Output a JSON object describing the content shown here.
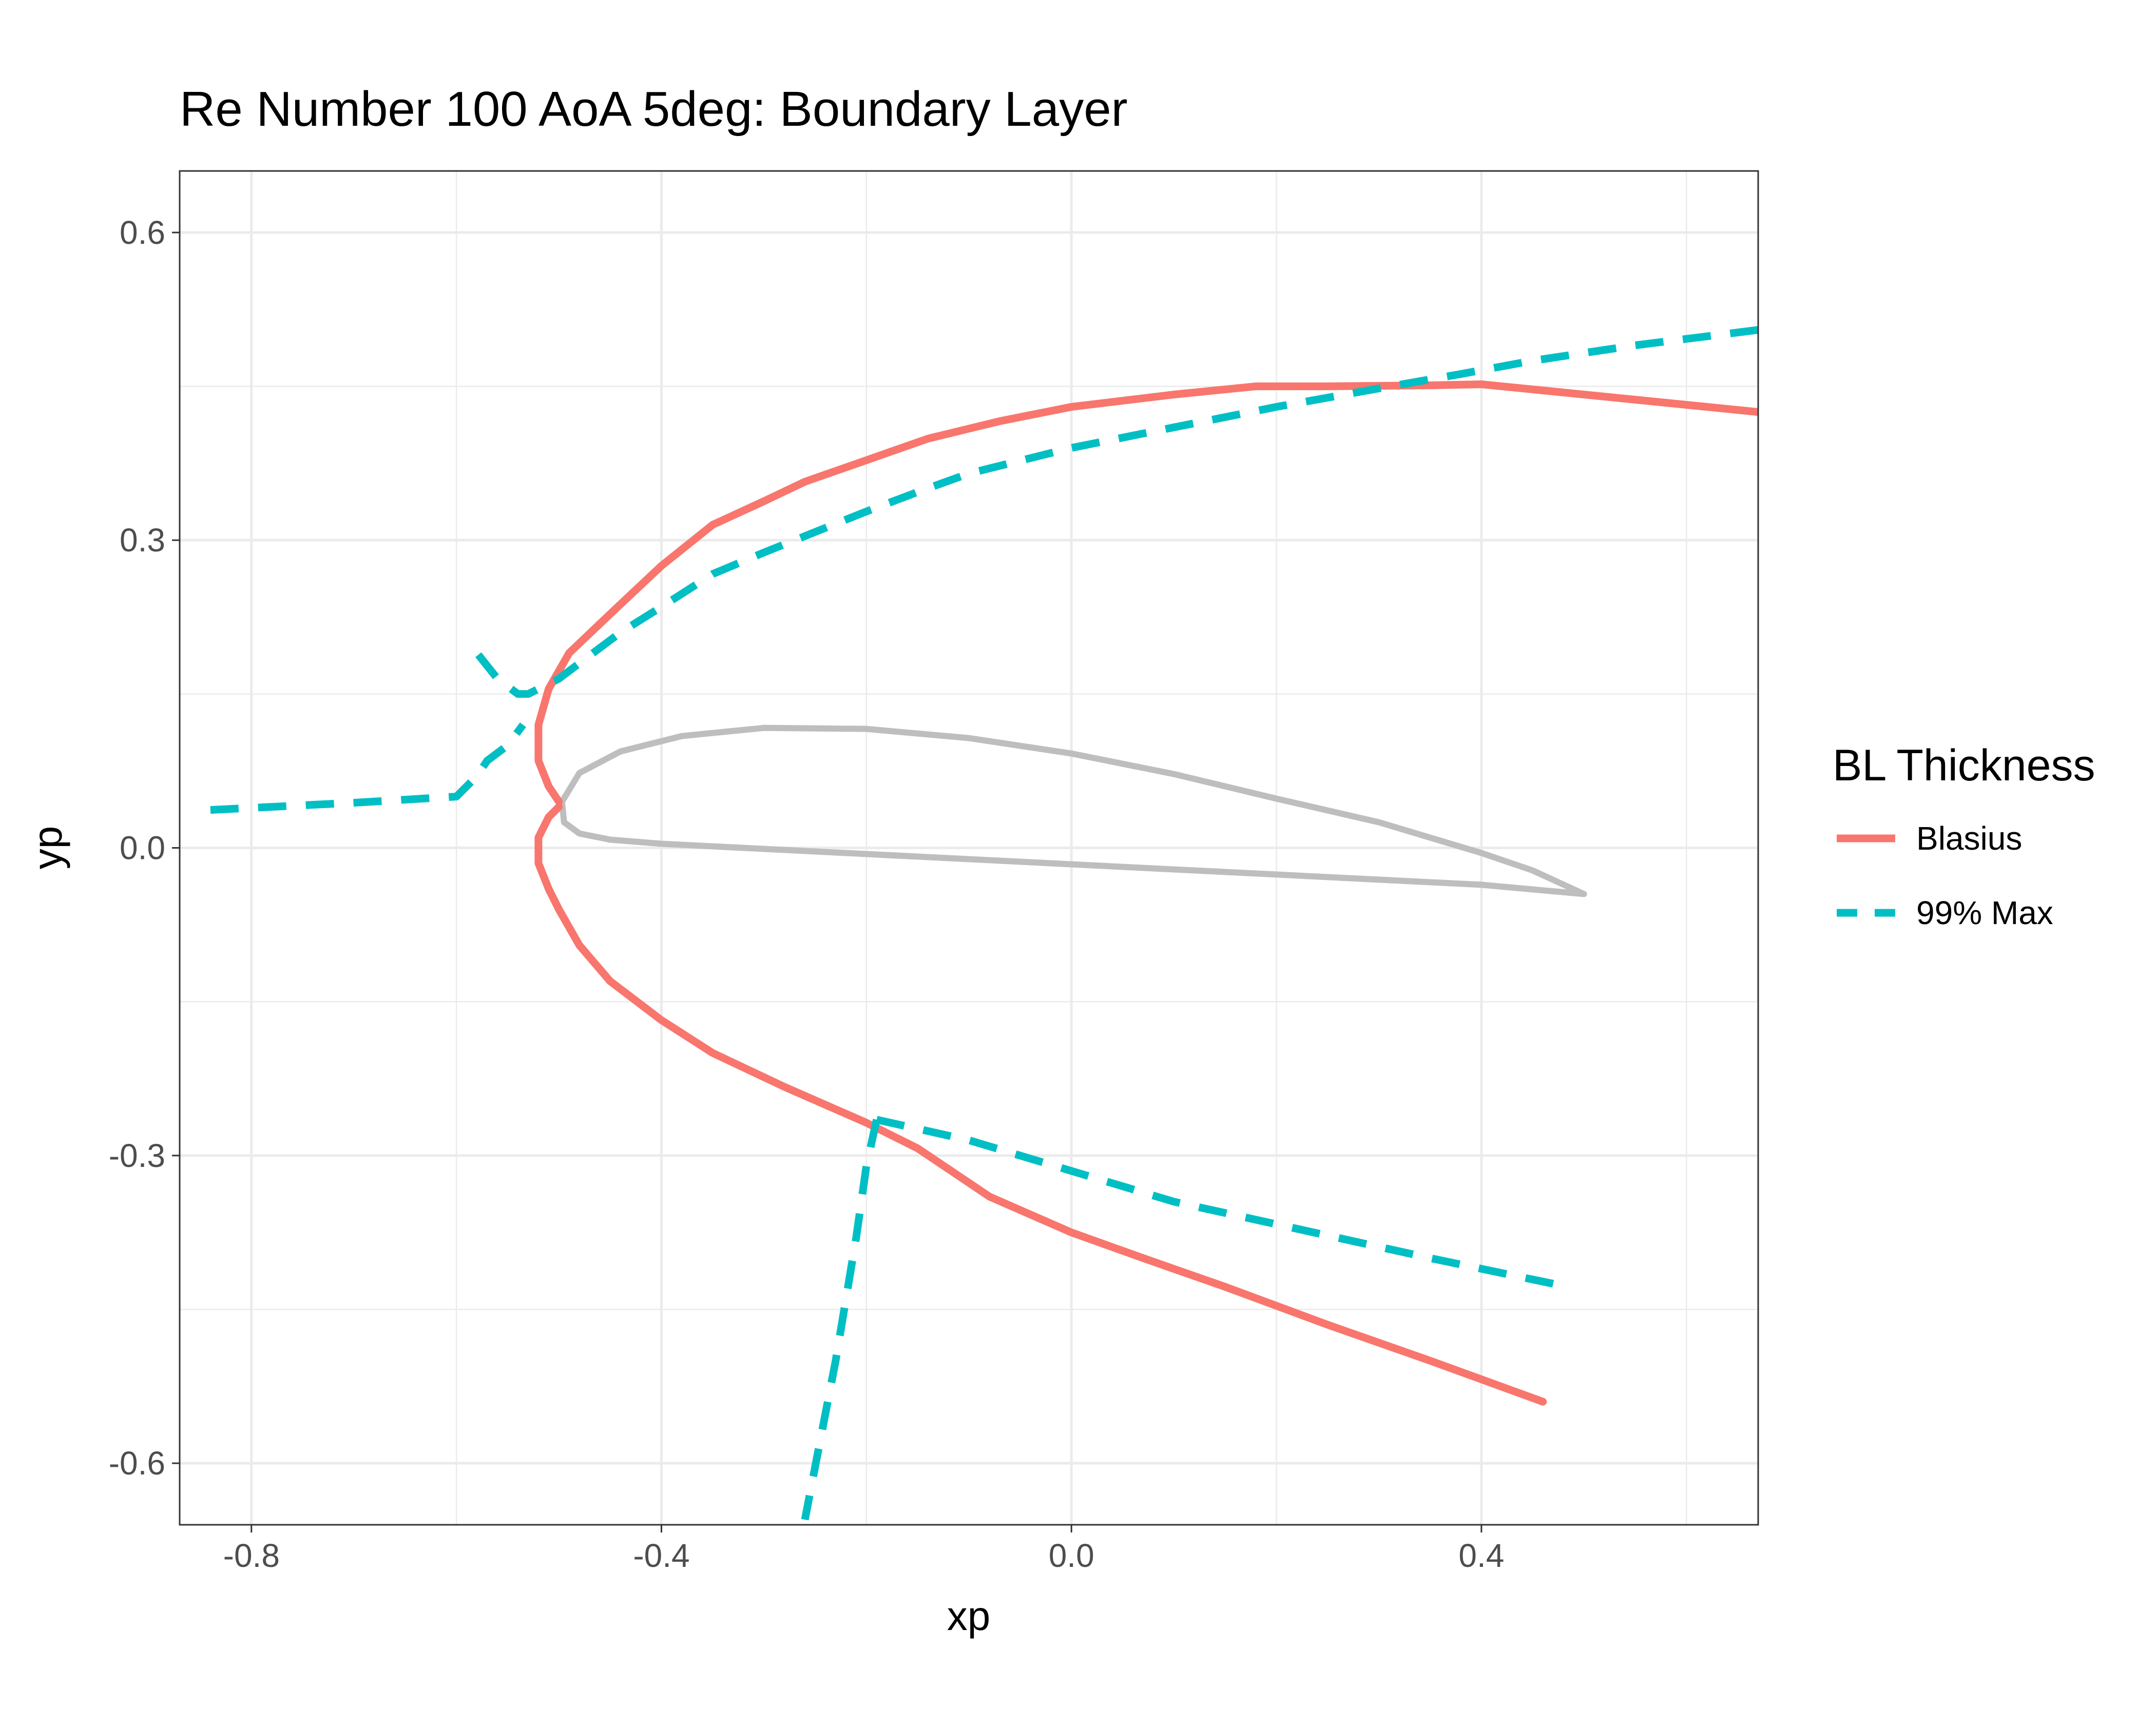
{
  "chart_data": {
    "type": "line",
    "title": "Re Number 100 AoA 5deg: Boundary Layer",
    "xlabel": "xp",
    "ylabel": "yp",
    "xlim": [
      -0.87,
      0.67
    ],
    "ylim": [
      -0.66,
      0.66
    ],
    "x_ticks": [
      -0.8,
      -0.4,
      0.0,
      0.4
    ],
    "x_tick_labels": [
      "-0.8",
      "-0.4",
      "0.0",
      "0.4"
    ],
    "y_ticks": [
      -0.6,
      -0.3,
      0.0,
      0.3,
      0.6
    ],
    "y_tick_labels": [
      "-0.6",
      "-0.3",
      "0.0",
      "0.3",
      "0.6"
    ],
    "x_minor": [
      -0.6,
      -0.2,
      0.2,
      0.6
    ],
    "y_minor": [
      -0.45,
      -0.15,
      0.15,
      0.45
    ],
    "grid": true,
    "legend": {
      "title": "BL Thickness",
      "position": "right",
      "entries": [
        "Blasius",
        "99% Max"
      ]
    },
    "airfoil": {
      "color": "#bebebe",
      "x": [
        0.5,
        0.45,
        0.4,
        0.3,
        0.2,
        0.1,
        0.0,
        -0.1,
        -0.2,
        -0.3,
        -0.38,
        -0.44,
        -0.48,
        -0.497,
        -0.495,
        -0.48,
        -0.45,
        -0.4,
        -0.3,
        -0.2,
        -0.1,
        0.0,
        0.1,
        0.2,
        0.3,
        0.4,
        0.5
      ],
      "y": [
        -0.045,
        -0.022,
        -0.005,
        0.025,
        0.048,
        0.072,
        0.092,
        0.107,
        0.116,
        0.117,
        0.109,
        0.094,
        0.073,
        0.045,
        0.025,
        0.014,
        0.008,
        0.004,
        -0.001,
        -0.006,
        -0.011,
        -0.016,
        -0.021,
        -0.026,
        -0.031,
        -0.036,
        -0.045
      ]
    },
    "series": [
      {
        "name": "Blasius",
        "color": "#f8766d",
        "dash": "solid",
        "segments": [
          {
            "x": [
              0.67,
              0.55,
              0.4,
              0.35,
              0.25,
              0.18,
              0.1,
              0.0,
              -0.07,
              -0.14,
              -0.2,
              -0.26,
              -0.3,
              -0.35,
              -0.4,
              -0.45,
              -0.49,
              -0.51,
              -0.52,
              -0.52,
              -0.51,
              -0.5
            ],
            "y": [
              0.425,
              0.437,
              0.452,
              0.451,
              0.45,
              0.45,
              0.442,
              0.43,
              0.416,
              0.399,
              0.378,
              0.357,
              0.338,
              0.315,
              0.275,
              0.228,
              0.19,
              0.155,
              0.12,
              0.085,
              0.06,
              0.045
            ]
          },
          {
            "x": [
              -0.5,
              -0.51,
              -0.52,
              -0.52,
              -0.51,
              -0.5,
              -0.48,
              -0.45,
              -0.4,
              -0.35,
              -0.28,
              -0.2,
              -0.15,
              -0.08,
              0.0,
              0.07,
              0.15,
              0.25,
              0.35,
              0.46
            ],
            "y": [
              0.04,
              0.03,
              0.01,
              -0.015,
              -0.04,
              -0.06,
              -0.095,
              -0.13,
              -0.168,
              -0.2,
              -0.233,
              -0.268,
              -0.293,
              -0.34,
              -0.375,
              -0.4,
              -0.428,
              -0.465,
              -0.5,
              -0.54
            ]
          }
        ]
      },
      {
        "name": "99% Max",
        "color": "#00bfc4",
        "dash": "dashed",
        "segments": [
          {
            "x": [
              0.67,
              0.55,
              0.45,
              0.38,
              0.3,
              0.2,
              0.1,
              0.0,
              -0.1,
              -0.15,
              -0.2,
              -0.27,
              -0.3,
              -0.35,
              -0.4,
              -0.44,
              -0.48,
              -0.5,
              -0.52,
              -0.53,
              -0.54,
              -0.56,
              -0.58
            ],
            "y": [
              0.505,
              0.49,
              0.475,
              0.462,
              0.448,
              0.43,
              0.41,
              0.39,
              0.365,
              0.347,
              0.328,
              0.3,
              0.288,
              0.267,
              0.235,
              0.21,
              0.18,
              0.165,
              0.155,
              0.15,
              0.15,
              0.165,
              0.19
            ]
          },
          {
            "x": [
              -0.84,
              -0.78,
              -0.7,
              -0.6,
              -0.58,
              -0.57,
              -0.55,
              -0.535
            ],
            "y": [
              0.037,
              0.04,
              0.044,
              0.05,
              0.07,
              0.085,
              0.1,
              0.12
            ]
          },
          {
            "x": [
              0.47,
              0.35,
              0.25,
              0.1,
              0.0,
              -0.1,
              -0.19
            ],
            "y": [
              -0.425,
              -0.4,
              -0.378,
              -0.345,
              -0.315,
              -0.285,
              -0.265
            ]
          },
          {
            "x": [
              -0.19,
              -0.2,
              -0.21,
              -0.23,
              -0.26
            ],
            "y": [
              -0.265,
              -0.31,
              -0.38,
              -0.5,
              -0.655
            ]
          }
        ]
      }
    ]
  }
}
